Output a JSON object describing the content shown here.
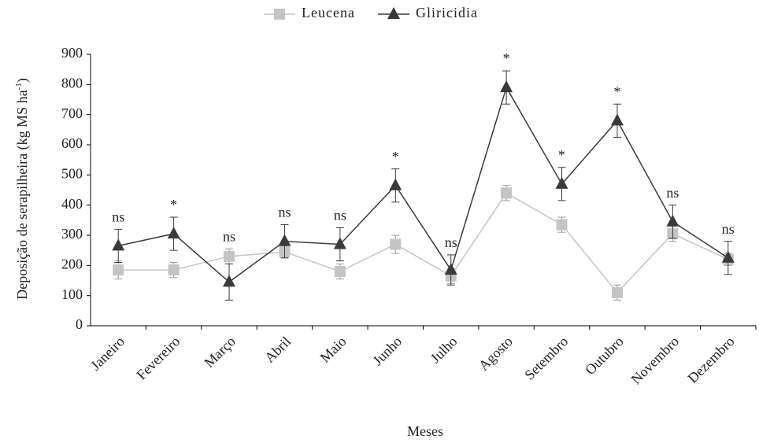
{
  "chart_data": {
    "type": "line",
    "ylabel": {
      "text": "Deposição de serapilheira (kg  MS ha",
      "superscript": "-1",
      "suffix": ")"
    },
    "xlabel": "Meses",
    "categories": [
      "Janeiro",
      "Fevereiro",
      "Março",
      "Abril",
      "Maio",
      "Junho",
      "Julho",
      "Agosto",
      "Setembro",
      "Outubro",
      "Novembro",
      "Dezembro"
    ],
    "series": [
      {
        "name": "Leucena",
        "color": "#c4c4c4",
        "marker": "square",
        "values": [
          185,
          185,
          230,
          245,
          180,
          270,
          165,
          440,
          335,
          110,
          305,
          220
        ],
        "errors": [
          30,
          25,
          25,
          20,
          25,
          30,
          25,
          25,
          25,
          25,
          25,
          20
        ]
      },
      {
        "name": "Gliricidia",
        "color": "#3a3a3a",
        "marker": "triangle",
        "values": [
          265,
          305,
          145,
          280,
          270,
          465,
          185,
          790,
          470,
          680,
          345,
          225
        ],
        "errors": [
          55,
          55,
          60,
          55,
          55,
          55,
          50,
          55,
          55,
          55,
          55,
          55
        ]
      }
    ],
    "annotations": [
      "ns",
      "*",
      "ns",
      "ns",
      "ns",
      "*",
      "ns",
      "*",
      "*",
      "*",
      "ns",
      "ns"
    ],
    "ylim": [
      0,
      900
    ],
    "yticks": [
      0,
      100,
      200,
      300,
      400,
      500,
      600,
      700,
      800,
      900
    ],
    "legend": "top"
  }
}
